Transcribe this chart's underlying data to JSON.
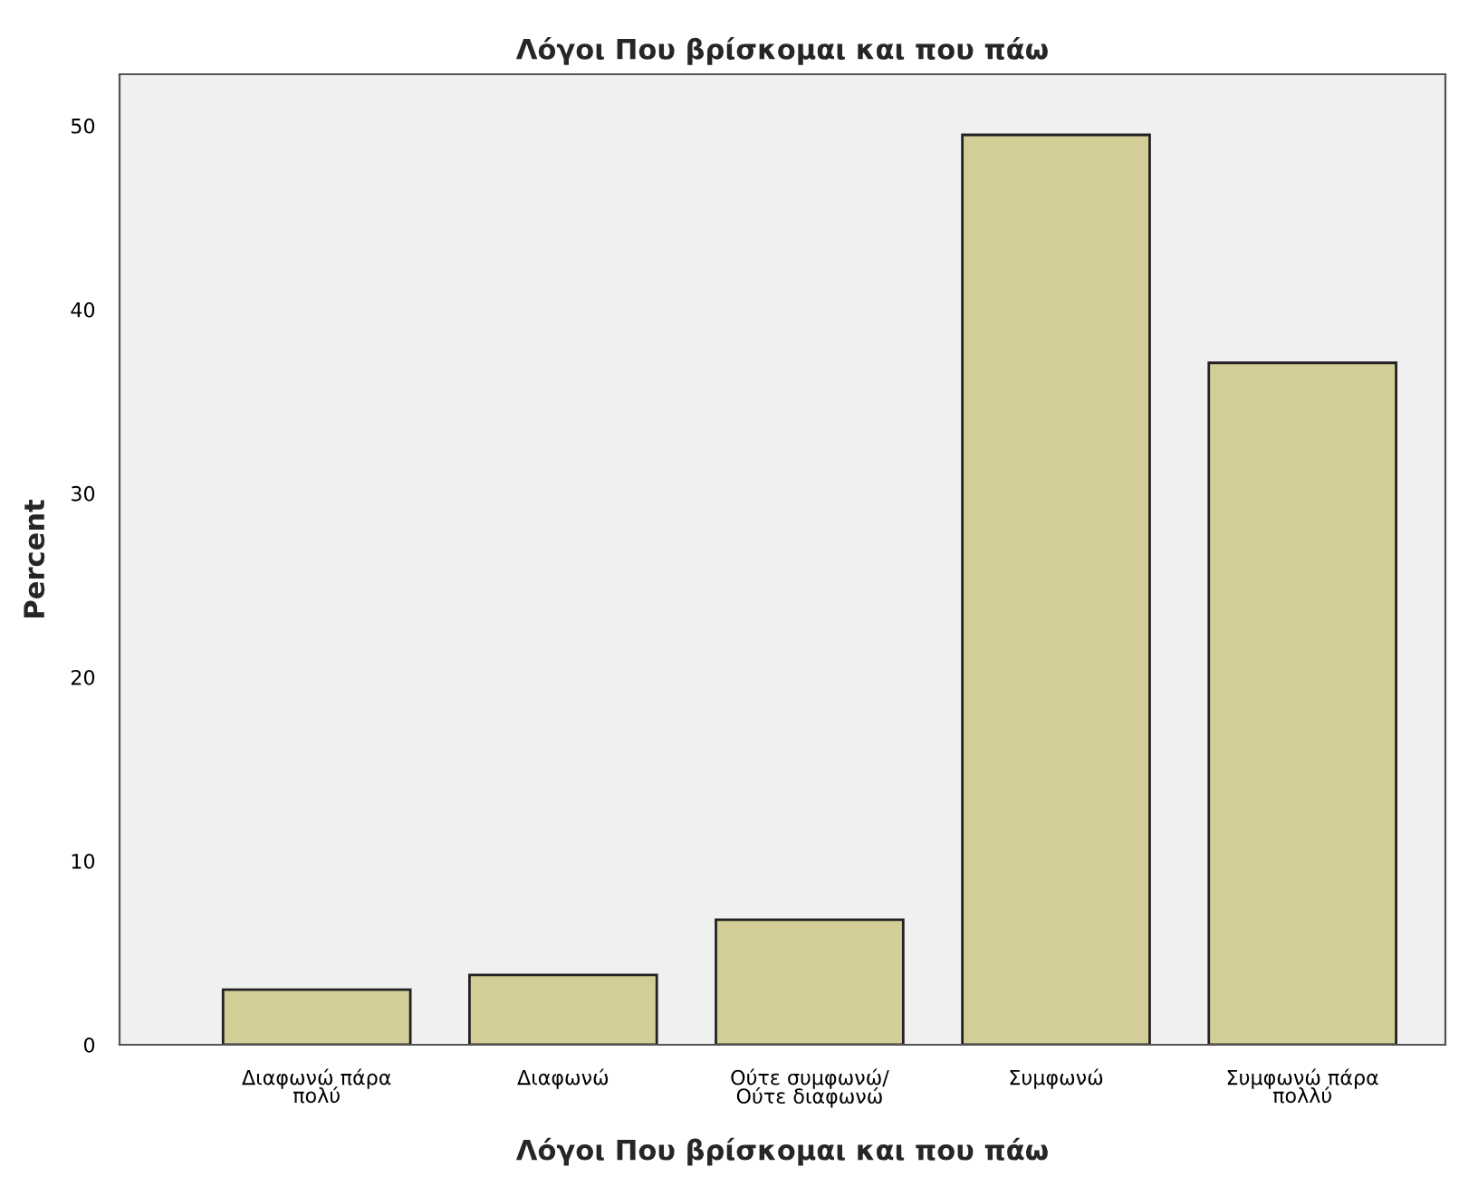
{
  "chart_data": {
    "type": "bar",
    "title": "Λόγοι Που βρίσκομαι και που πάω",
    "xlabel": "Λόγοι Που βρίσκομαι και που πάω",
    "ylabel": "Percent",
    "categories": [
      "Διαφωνώ πάρα\nπολύ",
      "Διαφωνώ",
      "Ούτε συμφωνώ/\nΟύτε διαφωνώ",
      "Συμφωνώ",
      "Συμφωνώ πάρα\nπολλύ"
    ],
    "values": [
      3.0,
      3.8,
      6.8,
      49.5,
      37.1
    ],
    "color": "#d3ce97",
    "ylim": [
      0,
      52.8
    ],
    "yticks": [
      0,
      10,
      20,
      30,
      40,
      50
    ],
    "grid": false,
    "legend": false
  }
}
